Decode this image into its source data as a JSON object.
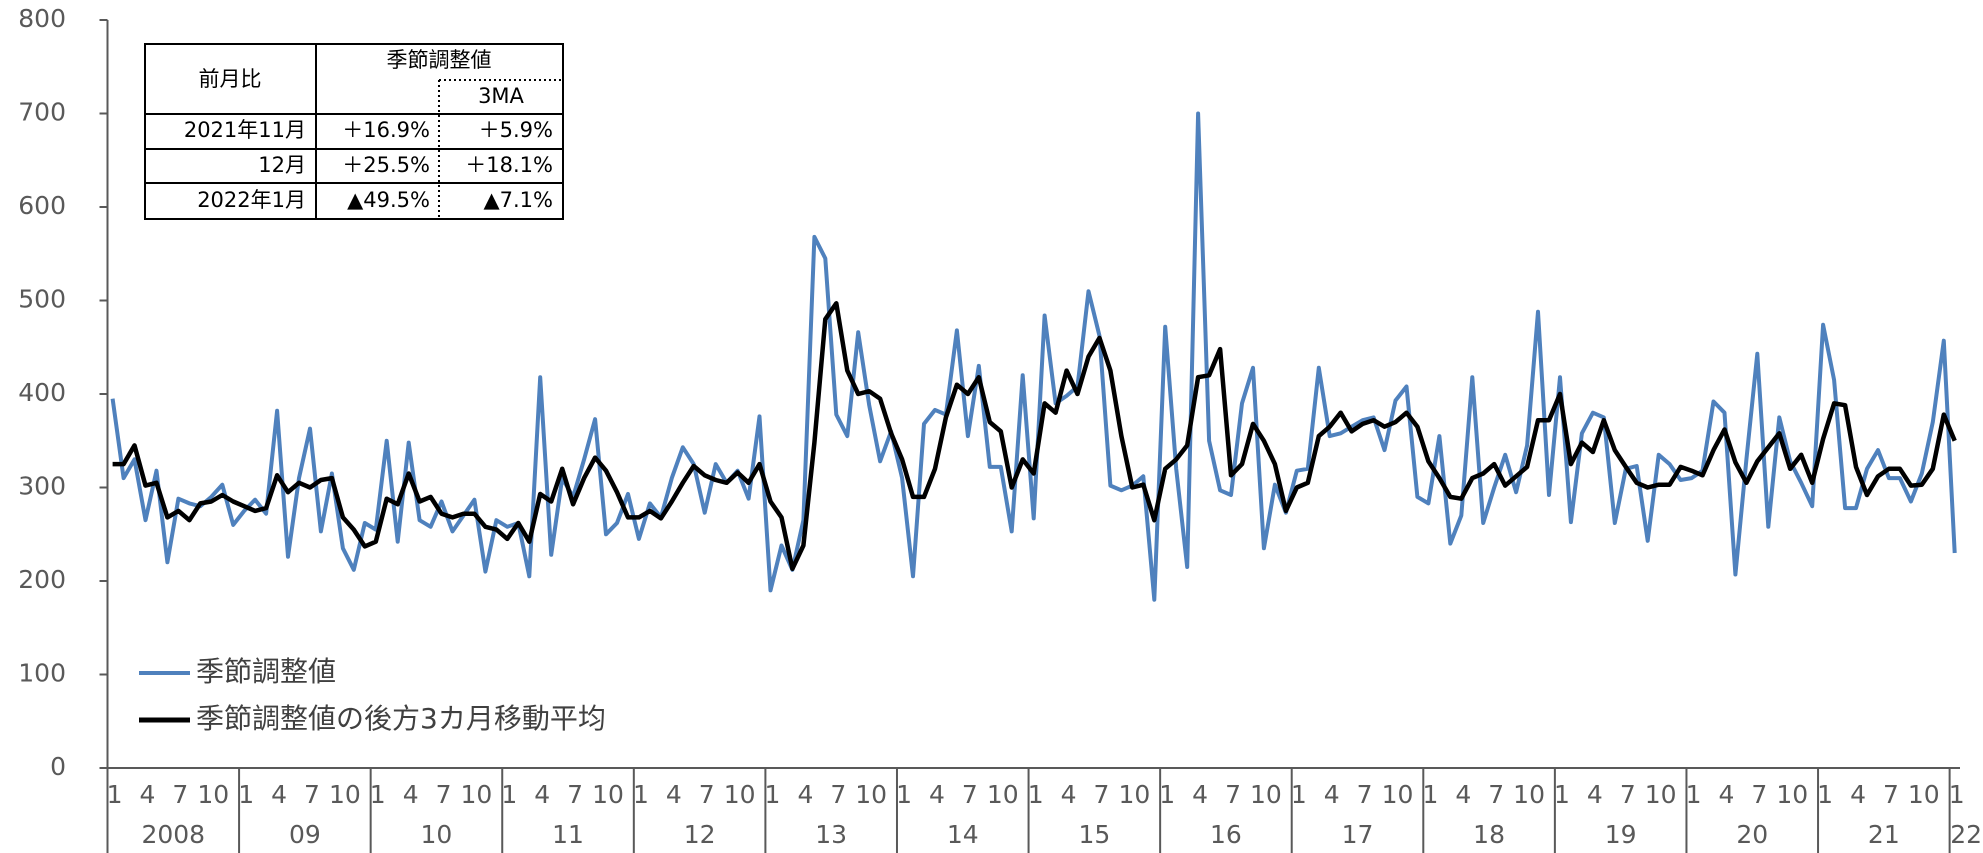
{
  "chart_data": {
    "type": "line",
    "categories": [
      "1",
      null,
      null,
      "4",
      null,
      null,
      "7",
      null,
      null,
      "10",
      null,
      null,
      "1",
      null,
      null,
      "4",
      null,
      null,
      "7",
      null,
      null,
      "10",
      null,
      null,
      "1",
      null,
      null,
      "4",
      null,
      null,
      "7",
      null,
      null,
      "10",
      null,
      null,
      "1",
      null,
      null,
      "4",
      null,
      null,
      "7",
      null,
      null,
      "10",
      null,
      null,
      "1",
      null,
      null,
      "4",
      null,
      null,
      "7",
      null,
      null,
      "10",
      null,
      null,
      "1",
      null,
      null,
      "4",
      null,
      null,
      "7",
      null,
      null,
      "10",
      null,
      null,
      "1",
      null,
      null,
      "4",
      null,
      null,
      "7",
      null,
      null,
      "10",
      null,
      null,
      "1",
      null,
      null,
      "4",
      null,
      null,
      "7",
      null,
      null,
      "10",
      null,
      null,
      "1",
      null,
      null,
      "4",
      null,
      null,
      "7",
      null,
      null,
      "10",
      null,
      null,
      "1",
      null,
      null,
      "4",
      null,
      null,
      "7",
      null,
      null,
      "10",
      null,
      null,
      "1",
      null,
      null,
      "4",
      null,
      null,
      "7",
      null,
      null,
      "10",
      null,
      null,
      "1",
      null,
      null,
      "4",
      null,
      null,
      "7",
      null,
      null,
      "10",
      null,
      null,
      "1",
      null,
      null,
      "4",
      null,
      null,
      "7",
      null,
      null,
      "10",
      null,
      null,
      "1",
      null,
      null,
      "4",
      null,
      null,
      "7",
      null,
      null,
      "10",
      null,
      null,
      "1"
    ],
    "years": [
      "2008",
      "09",
      "10",
      "11",
      "12",
      "13",
      "14",
      "15",
      "16",
      "17",
      "18",
      "19",
      "20",
      "21",
      "22"
    ],
    "series": [
      {
        "name": "季節調整値",
        "color": "#4f81bd",
        "values": [
          395,
          310,
          330,
          265,
          318,
          220,
          288,
          283,
          280,
          290,
          303,
          260,
          275,
          287,
          272,
          382,
          226,
          310,
          363,
          253,
          315,
          235,
          212,
          262,
          255,
          350,
          242,
          348,
          265,
          258,
          285,
          253,
          270,
          287,
          210,
          265,
          258,
          262,
          205,
          418,
          228,
          310,
          290,
          330,
          373,
          250,
          262,
          293,
          245,
          283,
          268,
          310,
          343,
          325,
          273,
          325,
          305,
          318,
          288,
          376,
          190,
          238,
          212,
          265,
          568,
          545,
          378,
          355,
          466,
          388,
          328,
          360,
          310,
          205,
          368,
          383,
          378,
          468,
          355,
          430,
          322,
          322,
          253,
          420,
          267,
          484,
          390,
          398,
          408,
          510,
          462,
          302,
          297,
          302,
          312,
          180,
          472,
          320,
          215,
          700,
          350,
          297,
          292,
          390,
          428,
          235,
          303,
          273,
          318,
          320,
          428,
          355,
          358,
          365,
          372,
          375,
          340,
          393,
          408,
          290,
          283,
          355,
          240,
          270,
          418,
          262,
          300,
          335,
          295,
          345,
          488,
          292,
          418,
          263,
          358,
          380,
          375,
          262,
          320,
          323,
          243,
          335,
          325,
          308,
          310,
          318,
          392,
          380,
          207,
          330,
          443,
          258,
          375,
          328,
          305,
          280,
          474,
          415,
          278,
          278,
          320,
          340,
          310,
          310,
          285,
          315,
          370,
          457,
          230
        ]
      },
      {
        "name": "季節調整値の後方3カ月移動平均",
        "color": "#000000",
        "values": [
          325,
          325,
          345,
          302,
          305,
          268,
          275,
          265,
          283,
          285,
          292,
          285,
          280,
          275,
          278,
          313,
          295,
          305,
          300,
          308,
          310,
          268,
          255,
          237,
          242,
          288,
          282,
          315,
          285,
          290,
          272,
          268,
          272,
          272,
          258,
          255,
          245,
          262,
          242,
          293,
          285,
          320,
          282,
          310,
          332,
          318,
          295,
          268,
          268,
          275,
          267,
          285,
          305,
          323,
          313,
          308,
          305,
          316,
          305,
          325,
          285,
          268,
          213,
          238,
          348,
          480,
          497,
          425,
          400,
          403,
          395,
          358,
          330,
          290,
          290,
          320,
          375,
          410,
          400,
          418,
          370,
          360,
          300,
          330,
          315,
          390,
          380,
          425,
          400,
          440,
          460,
          425,
          355,
          300,
          303,
          265,
          320,
          330,
          345,
          418,
          420,
          448,
          313,
          325,
          368,
          350,
          325,
          275,
          300,
          305,
          355,
          365,
          380,
          360,
          368,
          372,
          365,
          370,
          380,
          365,
          328,
          310,
          290,
          288,
          310,
          315,
          325,
          302,
          312,
          322,
          372,
          372,
          400,
          325,
          348,
          338,
          372,
          340,
          322,
          305,
          300,
          303,
          303,
          322,
          318,
          313,
          340,
          362,
          327,
          305,
          328,
          343,
          358,
          320,
          335,
          305,
          352,
          390,
          388,
          322,
          292,
          312,
          320,
          320,
          302,
          303,
          320,
          378,
          350
        ]
      }
    ],
    "ylim": [
      0,
      800
    ],
    "yticks": [
      0,
      100,
      200,
      300,
      400,
      500,
      600,
      700,
      800
    ],
    "grid": false,
    "legend": "lower left"
  },
  "table": {
    "header": {
      "label": "前月比",
      "group": "季節調整値",
      "sub": "3MA"
    },
    "rows": [
      [
        "2021年11月",
        "＋16.9%",
        "＋5.9%"
      ],
      [
        "12月",
        "＋25.5%",
        "＋18.1%"
      ],
      [
        "2022年1月",
        "▲49.5%",
        "▲7.1%"
      ]
    ]
  }
}
